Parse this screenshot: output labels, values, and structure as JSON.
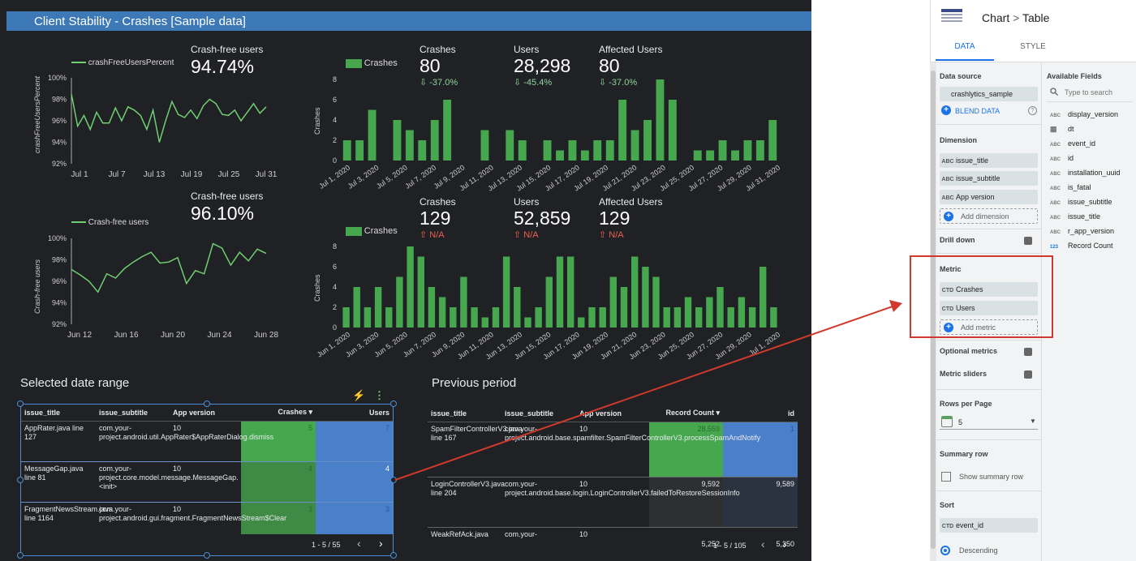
{
  "dashboard": {
    "title": "Client Stability - Crashes [Sample data]",
    "crashfree1": {
      "legend": "crashFreeUsersPercent",
      "ylabel": "crashFreeUsersPercent",
      "kpi_label": "Crash-free users",
      "kpi_value": "94.74%",
      "yticks": [
        "100%",
        "98%",
        "96%",
        "94%",
        "92%"
      ],
      "xticks": [
        "Jul 1",
        "Jul 7",
        "Jul 13",
        "Jul 19",
        "Jul 25",
        "Jul 31"
      ],
      "values": [
        98.5,
        95.5,
        96.5,
        95.2,
        96.8,
        95.8,
        95.8,
        97.2,
        96.0,
        97.3,
        97.0,
        96.5,
        95.2,
        97.0,
        94.0,
        96.0,
        97.8,
        96.6,
        96.3,
        97.0,
        96.2,
        97.4,
        98.0,
        97.6,
        96.6,
        96.5,
        97.0,
        96.0,
        96.8,
        97.6,
        96.7,
        97.3
      ]
    },
    "crashfree2": {
      "legend": "Crash-free users",
      "ylabel": "Crash-free users",
      "kpi_label": "Crash-free users",
      "kpi_value": "96.10%",
      "yticks": [
        "100%",
        "98%",
        "96%",
        "94%",
        "92%"
      ],
      "xticks": [
        "Jun 12",
        "Jun 16",
        "Jun 20",
        "Jun 24",
        "Jun 28"
      ],
      "values": [
        97.1,
        96.6,
        96.0,
        95.0,
        96.7,
        96.3,
        97.2,
        97.8,
        98.3,
        98.7,
        97.7,
        97.8,
        98.2,
        95.8,
        97.0,
        96.7,
        99.5,
        99.1,
        97.5,
        98.7,
        97.9,
        99.0,
        98.6
      ]
    },
    "bars1": {
      "legend": "Crashes",
      "ylabel": "Crashes",
      "yticks": [
        "8",
        "6",
        "4",
        "2",
        "0"
      ],
      "xticks": [
        "Jul 1, 2020",
        "Jul 3, 2020",
        "Jul 5, 2020",
        "Jul 7, 2020",
        "Jul 9, 2020",
        "Jul 11, 2020",
        "Jul 13, 2020",
        "Jul 15, 2020",
        "Jul 17, 2020",
        "Jul 19, 2020",
        "Jul 21, 2020",
        "Jul 23, 2020",
        "Jul 25, 2020",
        "Jul 27, 2020",
        "Jul 29, 2020",
        "Jul 31, 2020"
      ],
      "values": [
        2,
        2,
        5,
        0,
        4,
        3,
        2,
        4,
        6,
        0,
        0,
        3,
        0,
        3,
        2,
        0,
        2,
        1,
        2,
        1,
        2,
        2,
        6,
        3,
        4,
        8,
        6,
        0,
        1,
        1,
        2,
        1,
        2,
        2,
        4
      ],
      "kpis": [
        {
          "label": "Crashes",
          "value": "80",
          "delta": "⇩ -37.0%"
        },
        {
          "label": "Users",
          "value": "28,298",
          "delta": "⇩ -45.4%"
        },
        {
          "label": "Affected Users",
          "value": "80",
          "delta": "⇩ -37.0%"
        }
      ]
    },
    "bars2": {
      "legend": "Crashes",
      "ylabel": "Crashes",
      "yticks": [
        "8",
        "6",
        "4",
        "2",
        "0"
      ],
      "xticks": [
        "Jun 1, 2020",
        "Jun 3, 2020",
        "Jun 5, 2020",
        "Jun 7, 2020",
        "Jun 9, 2020",
        "Jun 11, 2020",
        "Jun 13, 2020",
        "Jun 15, 2020",
        "Jun 17, 2020",
        "Jun 19, 2020",
        "Jun 21, 2020",
        "Jun 23, 2020",
        "Jun 25, 2020",
        "Jun 27, 2020",
        "Jun 29, 2020",
        "Jul 1, 2020"
      ],
      "values": [
        2,
        4,
        2,
        4,
        2,
        5,
        8,
        7,
        4,
        3,
        2,
        5,
        2,
        1,
        2,
        7,
        4,
        1,
        2,
        5,
        7,
        7,
        1,
        2,
        2,
        5,
        4,
        7,
        6,
        5,
        2,
        2,
        3,
        2,
        3,
        4,
        2,
        3,
        2,
        6,
        2
      ],
      "kpis": [
        {
          "label": "Crashes",
          "value": "129",
          "delta": "⇧ N/A"
        },
        {
          "label": "Users",
          "value": "52,859",
          "delta": "⇧ N/A"
        },
        {
          "label": "Affected Users",
          "value": "129",
          "delta": "⇧ N/A"
        }
      ]
    },
    "table_current": {
      "title": "Selected date range",
      "headers": [
        "issue_title",
        "issue_subtitle",
        "App version",
        "Crashes ▾",
        "Users"
      ],
      "rows": [
        [
          "AppRater.java line 127",
          "com.your-project.android.util.AppRater$AppRaterDialog.dismiss",
          "10",
          "5",
          "7"
        ],
        [
          "MessageGap.java line 81",
          "com.your-project.core.model.message.MessageGap.<init>",
          "10",
          "4",
          "4"
        ],
        [
          "FragmentNewsStream.java line 1164",
          "com.your-project.android.gui.fragment.FragmentNewsStream$Clear",
          "10",
          "3",
          "3"
        ]
      ],
      "pager": "1 - 5 / 55",
      "prev": "‹",
      "next": "›"
    },
    "table_previous": {
      "title": "Previous period",
      "headers": [
        "issue_title",
        "issue_subtitle",
        "App version",
        "Record Count ▾",
        "id"
      ],
      "rows": [
        [
          "SpamFilterControllerV3.java line 167",
          "com.your-project.android.base.spamfilter.SpamFilterControllerV3.processSpamAndNotify",
          "10",
          "28,559",
          "1"
        ],
        [
          "LoginControllerV3.java line 204",
          "com.your-project.android.base.login.LoginControllerV3.failedToRestoreSessionInfo",
          "10",
          "9,592",
          "9,589"
        ],
        [
          "WeakRefAck.java",
          "com.your-",
          "10",
          "5,252",
          "5,250"
        ]
      ],
      "pager": "1 - 5 / 105",
      "prev": "‹",
      "next": "›"
    },
    "toolbar": {
      "bolt": "⚡",
      "more": "⋮"
    }
  },
  "panel": {
    "breadcrumb_chart": "Chart",
    "breadcrumb_sep": ">",
    "breadcrumb_table": "Table",
    "tab_data": "DATA",
    "tab_style": "STYLE",
    "data_source_label": "Data source",
    "data_source_value": "crashlytics_sample",
    "blend_data": "BLEND DATA",
    "dimension_label": "Dimension",
    "dimensions": [
      {
        "tag": "ABC",
        "name": "issue_title"
      },
      {
        "tag": "ABC",
        "name": "issue_subtitle"
      },
      {
        "tag": "ABC",
        "name": "App version"
      }
    ],
    "add_dimension": "Add dimension",
    "drill_down": "Drill down",
    "metric_label": "Metric",
    "metrics": [
      {
        "tag": "CTD",
        "name": "Crashes"
      },
      {
        "tag": "CTD",
        "name": "Users"
      }
    ],
    "add_metric": "Add metric",
    "optional_metrics": "Optional metrics",
    "metric_sliders": "Metric sliders",
    "rows_per_page_label": "Rows per Page",
    "rows_per_page_value": "5",
    "summary_row_label": "Summary row",
    "show_summary_row": "Show summary row",
    "sort_label": "Sort",
    "sort_field": {
      "tag": "CTD",
      "name": "event_id"
    },
    "sort_order": "Descending",
    "available_fields_label": "Available Fields",
    "search_placeholder": "Type to search",
    "fields": [
      {
        "tag": "ABC",
        "name": "display_version"
      },
      {
        "tag": "▦",
        "name": "dt"
      },
      {
        "tag": "ABC",
        "name": "event_id"
      },
      {
        "tag": "ABC",
        "name": "id"
      },
      {
        "tag": "ABC",
        "name": "installation_uuid"
      },
      {
        "tag": "ABC",
        "name": "is_fatal"
      },
      {
        "tag": "ABC",
        "name": "issue_subtitle"
      },
      {
        "tag": "ABC",
        "name": "issue_title"
      },
      {
        "tag": "ABC",
        "name": "r_app_version"
      },
      {
        "tag": "123",
        "name": "Record Count"
      }
    ]
  },
  "colors": {
    "green": "#46a74e",
    "blue": "#4a7fc9",
    "line": "#6fcf72",
    "annotation": "#d0392b",
    "tab": "#1a73e8"
  }
}
